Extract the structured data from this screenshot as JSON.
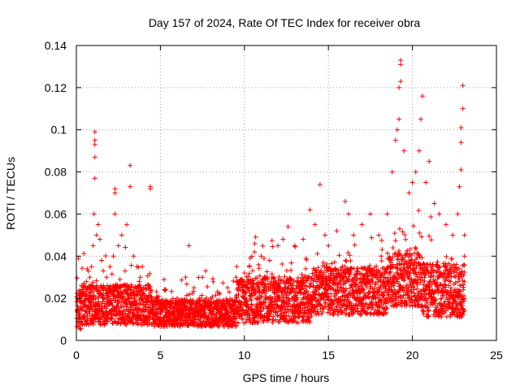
{
  "chart_data": {
    "type": "scatter",
    "title": "Day 157 of 2024, Rate Of TEC Index for receiver obra",
    "xlabel": "GPS time / hours",
    "ylabel": "ROTI / TECUs",
    "xlim": [
      0,
      25
    ],
    "ylim": [
      0,
      0.14
    ],
    "x_ticks": [
      0,
      5,
      10,
      15,
      20,
      25
    ],
    "x_tick_labels": [
      "0",
      "5",
      "10",
      "15",
      "20",
      "25"
    ],
    "y_ticks": [
      0,
      0.02,
      0.04,
      0.06,
      0.08,
      0.1,
      0.12,
      0.14
    ],
    "y_tick_labels": [
      "0",
      "0.02",
      "0.04",
      "0.06",
      "0.08",
      "0.1",
      "0.12",
      "0.14"
    ],
    "grid": true,
    "marker": "plus",
    "color": "#ff0000",
    "series": [
      {
        "name": "ROTI",
        "points": [
          [
            0.1,
            0.012
          ],
          [
            0.3,
            0.018
          ],
          [
            0.5,
            0.022
          ],
          [
            0.6,
            0.028
          ],
          [
            0.8,
            0.03
          ],
          [
            0.9,
            0.035
          ],
          [
            1.0,
            0.045
          ],
          [
            1.05,
            0.06
          ],
          [
            1.1,
            0.077
          ],
          [
            1.1,
            0.087
          ],
          [
            1.1,
            0.093
          ],
          [
            1.1,
            0.095
          ],
          [
            1.1,
            0.099
          ],
          [
            1.2,
            0.05
          ],
          [
            1.3,
            0.055
          ],
          [
            1.4,
            0.048
          ],
          [
            1.5,
            0.038
          ],
          [
            1.6,
            0.033
          ],
          [
            1.8,
            0.03
          ],
          [
            2.0,
            0.035
          ],
          [
            2.2,
            0.04
          ],
          [
            2.3,
            0.06
          ],
          [
            2.3,
            0.07
          ],
          [
            2.3,
            0.072
          ],
          [
            2.5,
            0.045
          ],
          [
            2.7,
            0.05
          ],
          [
            2.9,
            0.033
          ],
          [
            3.0,
            0.055
          ],
          [
            3.2,
            0.083
          ],
          [
            3.2,
            0.073
          ],
          [
            3.4,
            0.04
          ],
          [
            3.6,
            0.035
          ],
          [
            3.8,
            0.03
          ],
          [
            4.0,
            0.025
          ],
          [
            4.2,
            0.02
          ],
          [
            4.4,
            0.072
          ],
          [
            4.4,
            0.073
          ],
          [
            4.6,
            0.018
          ],
          [
            5.0,
            0.015
          ],
          [
            5.5,
            0.018
          ],
          [
            6.0,
            0.02
          ],
          [
            6.5,
            0.03
          ],
          [
            6.7,
            0.045
          ],
          [
            7.0,
            0.025
          ],
          [
            7.5,
            0.03
          ],
          [
            7.7,
            0.033
          ],
          [
            8.0,
            0.02
          ],
          [
            8.3,
            0.018
          ],
          [
            8.5,
            0.022
          ],
          [
            9.0,
            0.025
          ],
          [
            9.5,
            0.03
          ],
          [
            10.0,
            0.032
          ],
          [
            10.3,
            0.035
          ],
          [
            10.6,
            0.042
          ],
          [
            11.0,
            0.04
          ],
          [
            11.5,
            0.038
          ],
          [
            12.0,
            0.045
          ],
          [
            12.3,
            0.048
          ],
          [
            12.6,
            0.054
          ],
          [
            13.0,
            0.045
          ],
          [
            13.5,
            0.048
          ],
          [
            13.9,
            0.062
          ],
          [
            14.2,
            0.055
          ],
          [
            14.5,
            0.074
          ],
          [
            14.8,
            0.05
          ],
          [
            15.0,
            0.045
          ],
          [
            15.5,
            0.052
          ],
          [
            16.0,
            0.066
          ],
          [
            16.2,
            0.06
          ],
          [
            16.5,
            0.05
          ],
          [
            17.0,
            0.055
          ],
          [
            17.5,
            0.06
          ],
          [
            18.0,
            0.05
          ],
          [
            18.5,
            0.06
          ],
          [
            18.8,
            0.08
          ],
          [
            19.0,
            0.095
          ],
          [
            19.1,
            0.1
          ],
          [
            19.2,
            0.105
          ],
          [
            19.2,
            0.12
          ],
          [
            19.3,
            0.123
          ],
          [
            19.3,
            0.131
          ],
          [
            19.3,
            0.133
          ],
          [
            19.5,
            0.09
          ],
          [
            19.8,
            0.07
          ],
          [
            20.0,
            0.075
          ],
          [
            20.2,
            0.08
          ],
          [
            20.4,
            0.09
          ],
          [
            20.5,
            0.105
          ],
          [
            20.6,
            0.116
          ],
          [
            20.8,
            0.075
          ],
          [
            21.0,
            0.085
          ],
          [
            21.3,
            0.065
          ],
          [
            21.6,
            0.06
          ],
          [
            22.0,
            0.055
          ],
          [
            22.4,
            0.05
          ],
          [
            22.7,
            0.06
          ],
          [
            22.8,
            0.073
          ],
          [
            22.9,
            0.081
          ],
          [
            22.9,
            0.094
          ],
          [
            22.9,
            0.101
          ],
          [
            23.0,
            0.11
          ],
          [
            23.0,
            0.121
          ],
          [
            23.1,
            0.05
          ],
          [
            23.1,
            0.04
          ]
        ]
      }
    ]
  }
}
